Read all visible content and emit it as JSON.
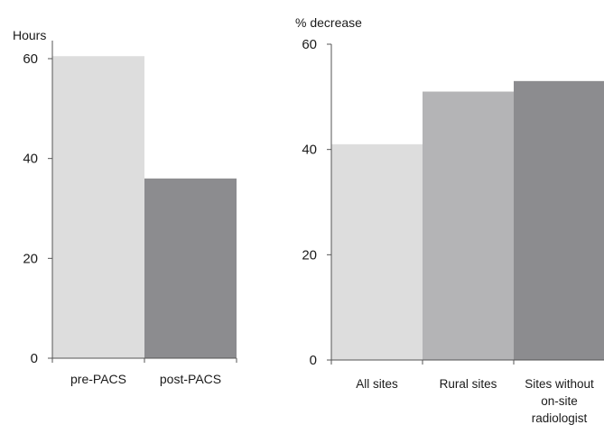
{
  "chart_data": [
    {
      "type": "bar",
      "title": "",
      "ylabel": "Hours",
      "xlabel": "",
      "ylim": [
        0,
        60
      ],
      "yticks": [
        0,
        20,
        40,
        60
      ],
      "grid": false,
      "categories": [
        "pre-PACS",
        "post-PACS"
      ],
      "values": [
        60.5,
        36
      ],
      "colors": [
        "#dddddd",
        "#8c8c8f"
      ]
    },
    {
      "type": "bar",
      "title": "",
      "ylabel": "% decrease",
      "xlabel": "",
      "ylim": [
        0,
        60
      ],
      "yticks": [
        0,
        20,
        40,
        60
      ],
      "grid": false,
      "categories": [
        "All sites",
        "Rural sites",
        "Sites without on-site radiologist"
      ],
      "category_lines": [
        [
          "All sites"
        ],
        [
          "Rural sites"
        ],
        [
          "Sites without",
          "on-site",
          "radiologist"
        ]
      ],
      "values": [
        41,
        51,
        53
      ],
      "colors": [
        "#dddddd",
        "#b4b4b6",
        "#8c8c8f"
      ]
    }
  ]
}
